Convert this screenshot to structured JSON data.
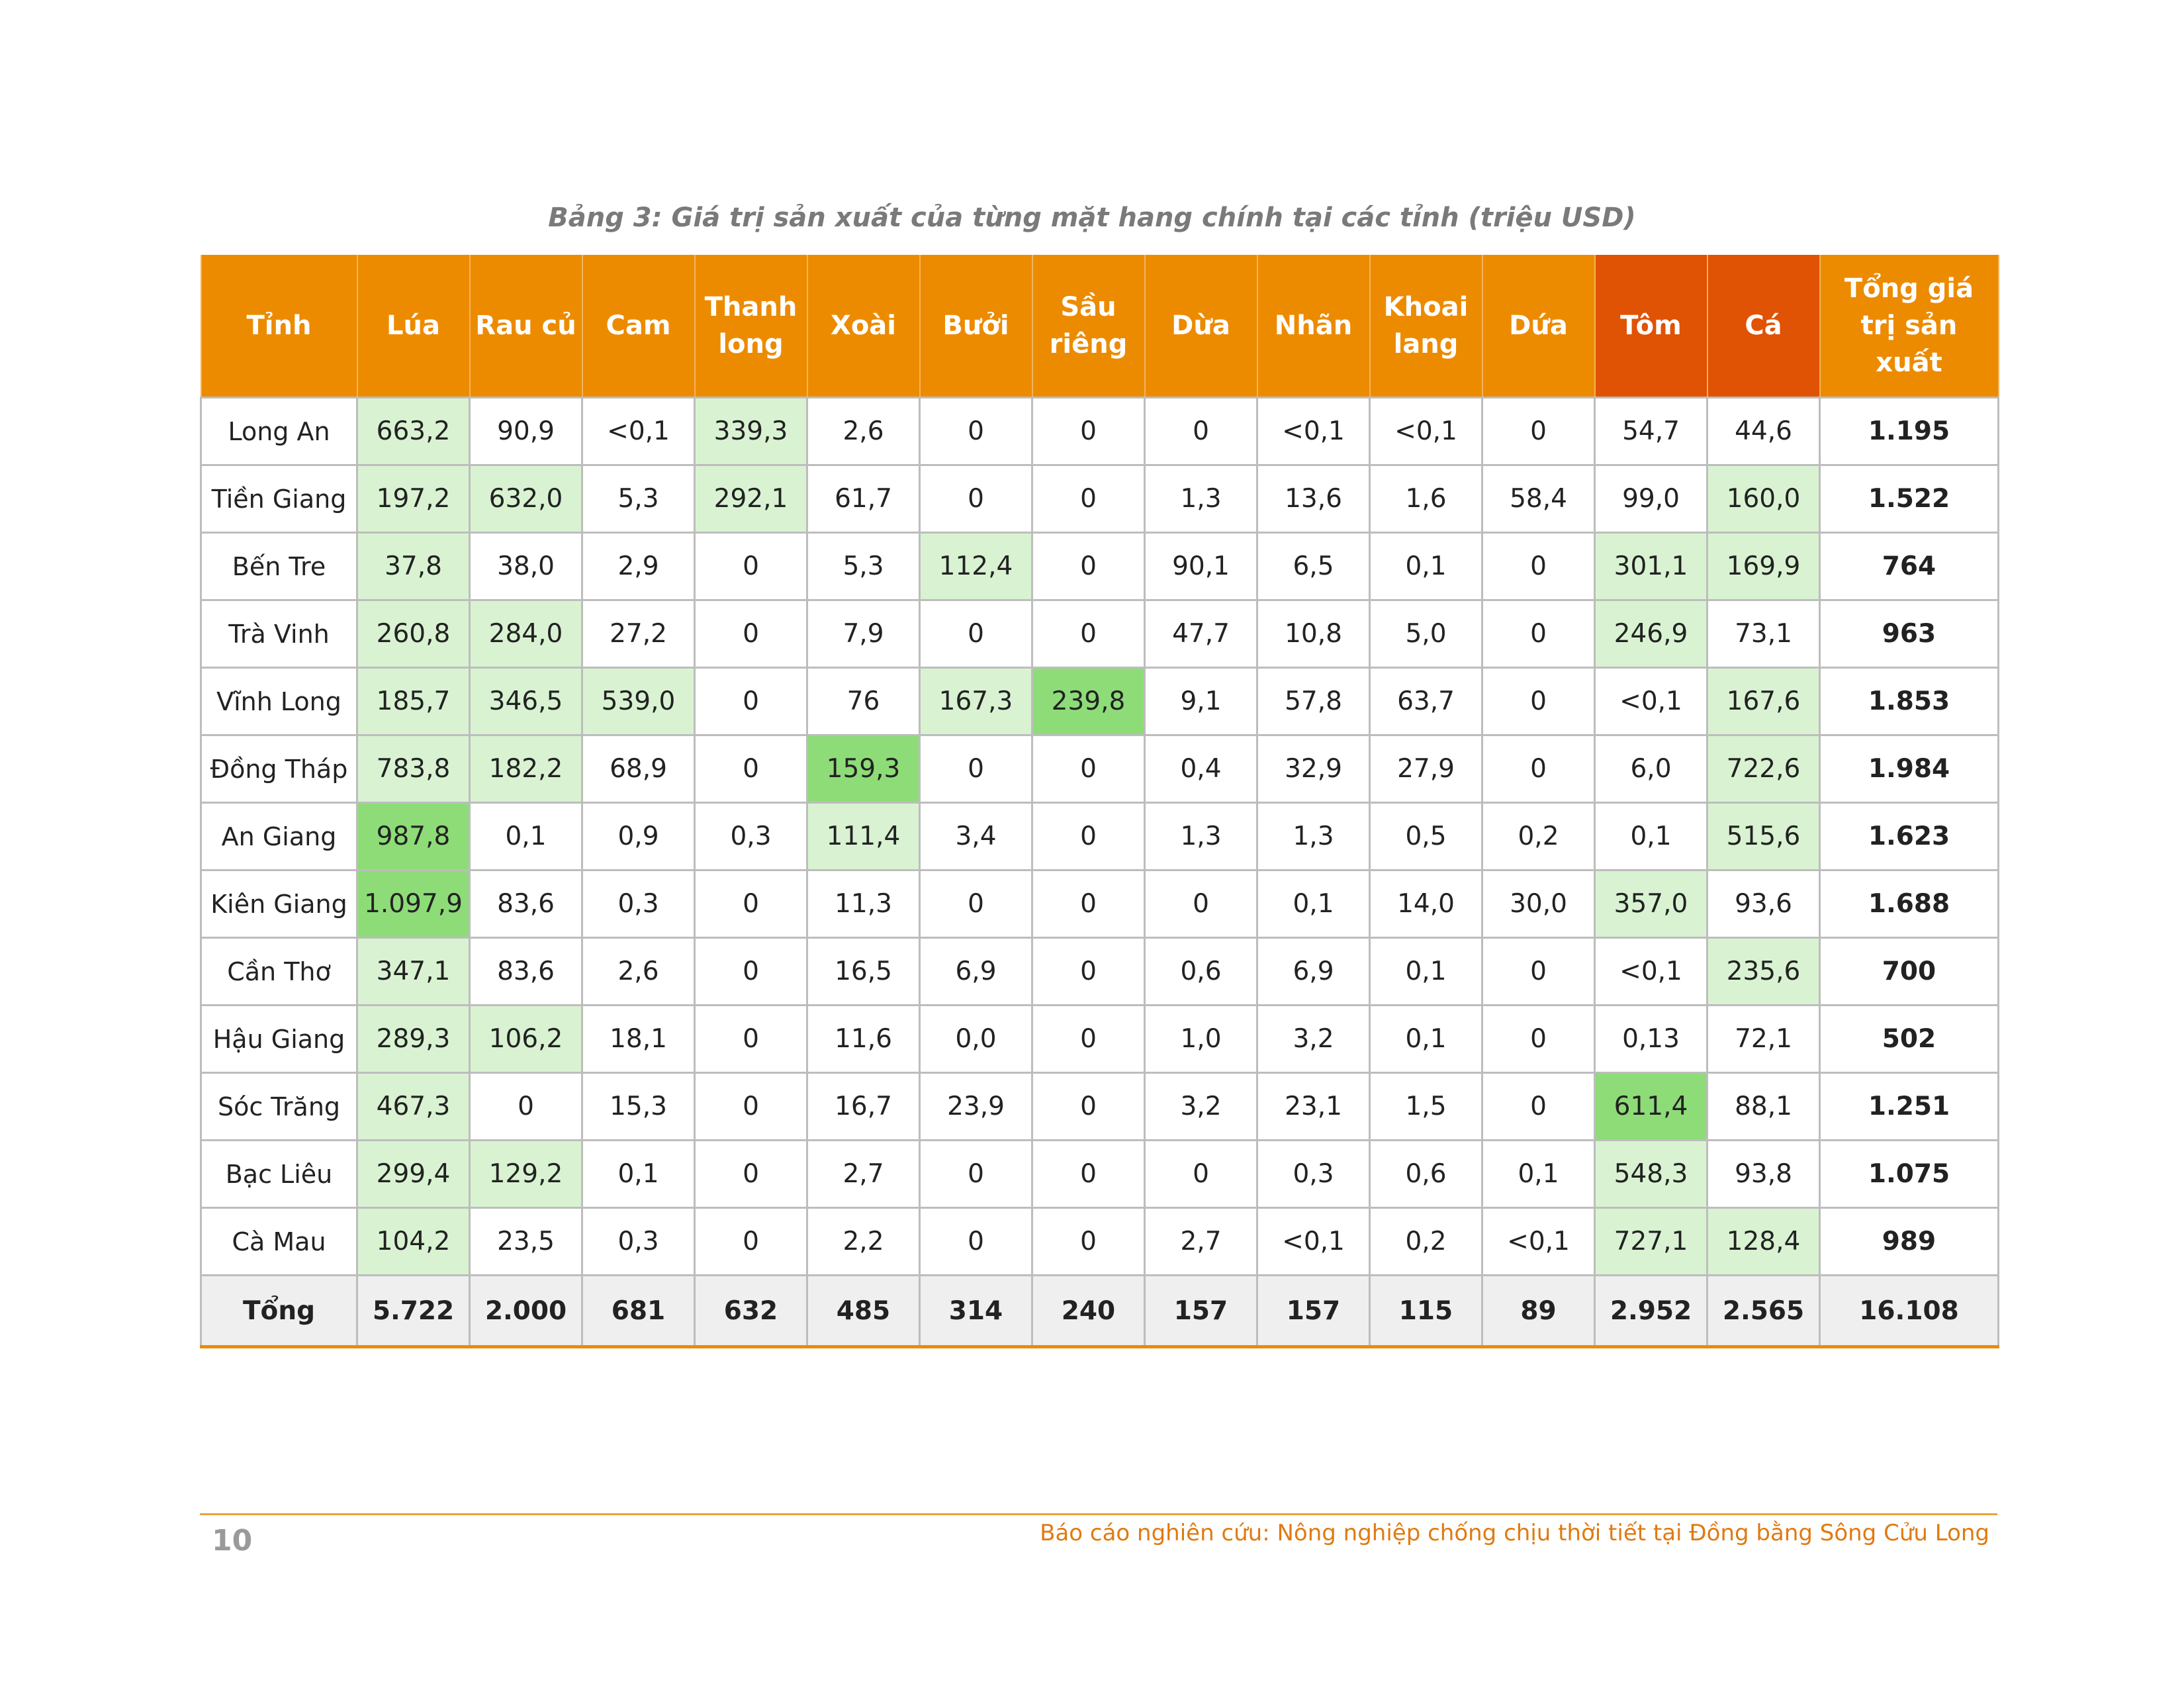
{
  "caption": "Bảng 3: Giá trị sản xuất của từng mặt hang chính tại các tỉnh (triệu USD)",
  "headers": [
    "Tỉnh",
    "Lúa",
    "Rau củ",
    "Cam",
    "Thanh long",
    "Xoài",
    "Bưởi",
    "Sầu riêng",
    "Dừa",
    "Nhãn",
    "Khoai lang",
    "Dứa",
    "Tôm",
    "Cá",
    "Tổng giá trị sản xuất"
  ],
  "rows": [
    {
      "cells": [
        "Long An",
        "663,2",
        "90,9",
        "<0,1",
        "339,3",
        "2,6",
        "0",
        "0",
        "0",
        "<0,1",
        "<0,1",
        "0",
        "54,7",
        "44,6",
        "1.195"
      ],
      "hl": [
        0,
        1,
        0,
        0,
        1,
        0,
        0,
        0,
        0,
        0,
        0,
        0,
        0,
        0,
        0
      ]
    },
    {
      "cells": [
        "Tiền Giang",
        "197,2",
        "632,0",
        "5,3",
        "292,1",
        "61,7",
        "0",
        "0",
        "1,3",
        "13,6",
        "1,6",
        "58,4",
        "99,0",
        "160,0",
        "1.522"
      ],
      "hl": [
        0,
        1,
        1,
        0,
        1,
        0,
        0,
        0,
        0,
        0,
        0,
        0,
        0,
        1,
        0
      ]
    },
    {
      "cells": [
        "Bến Tre",
        "37,8",
        "38,0",
        "2,9",
        "0",
        "5,3",
        "112,4",
        "0",
        "90,1",
        "6,5",
        "0,1",
        "0",
        "301,1",
        "169,9",
        "764"
      ],
      "hl": [
        0,
        1,
        0,
        0,
        0,
        0,
        1,
        0,
        0,
        0,
        0,
        0,
        1,
        1,
        0
      ]
    },
    {
      "cells": [
        "Trà Vinh",
        "260,8",
        "284,0",
        "27,2",
        "0",
        "7,9",
        "0",
        "0",
        "47,7",
        "10,8",
        "5,0",
        "0",
        "246,9",
        "73,1",
        "963"
      ],
      "hl": [
        0,
        1,
        1,
        0,
        0,
        0,
        0,
        0,
        0,
        0,
        0,
        0,
        1,
        0,
        0
      ]
    },
    {
      "cells": [
        "Vĩnh Long",
        "185,7",
        "346,5",
        "539,0",
        "0",
        "76",
        "167,3",
        "239,8",
        "9,1",
        "57,8",
        "63,7",
        "0",
        "<0,1",
        "167,6",
        "1.853"
      ],
      "hl": [
        0,
        1,
        1,
        1,
        0,
        0,
        1,
        2,
        0,
        0,
        0,
        0,
        0,
        1,
        0
      ]
    },
    {
      "cells": [
        "Đồng Tháp",
        "783,8",
        "182,2",
        "68,9",
        "0",
        "159,3",
        "0",
        "0",
        "0,4",
        "32,9",
        "27,9",
        "0",
        "6,0",
        "722,6",
        "1.984"
      ],
      "hl": [
        0,
        1,
        1,
        0,
        0,
        2,
        0,
        0,
        0,
        0,
        0,
        0,
        0,
        1,
        0
      ]
    },
    {
      "cells": [
        "An Giang",
        "987,8",
        "0,1",
        "0,9",
        "0,3",
        "111,4",
        "3,4",
        "0",
        "1,3",
        "1,3",
        "0,5",
        "0,2",
        "0,1",
        "515,6",
        "1.623"
      ],
      "hl": [
        0,
        2,
        0,
        0,
        0,
        1,
        0,
        0,
        0,
        0,
        0,
        0,
        0,
        1,
        0
      ]
    },
    {
      "cells": [
        "Kiên Giang",
        "1.097,9",
        "83,6",
        "0,3",
        "0",
        "11,3",
        "0",
        "0",
        "0",
        "0,1",
        "14,0",
        "30,0",
        "357,0",
        "93,6",
        "1.688"
      ],
      "hl": [
        0,
        2,
        0,
        0,
        0,
        0,
        0,
        0,
        0,
        0,
        0,
        0,
        1,
        0,
        0
      ]
    },
    {
      "cells": [
        "Cần Thơ",
        "347,1",
        "83,6",
        "2,6",
        "0",
        "16,5",
        "6,9",
        "0",
        "0,6",
        "6,9",
        "0,1",
        "0",
        "<0,1",
        "235,6",
        "700"
      ],
      "hl": [
        0,
        1,
        0,
        0,
        0,
        0,
        0,
        0,
        0,
        0,
        0,
        0,
        0,
        1,
        0
      ]
    },
    {
      "cells": [
        "Hậu Giang",
        "289,3",
        "106,2",
        "18,1",
        "0",
        "11,6",
        "0,0",
        "0",
        "1,0",
        "3,2",
        "0,1",
        "0",
        "0,13",
        "72,1",
        "502"
      ],
      "hl": [
        0,
        1,
        1,
        0,
        0,
        0,
        0,
        0,
        0,
        0,
        0,
        0,
        0,
        0,
        0
      ]
    },
    {
      "cells": [
        "Sóc Trăng",
        "467,3",
        "0",
        "15,3",
        "0",
        "16,7",
        "23,9",
        "0",
        "3,2",
        "23,1",
        "1,5",
        "0",
        "611,4",
        "88,1",
        "1.251"
      ],
      "hl": [
        0,
        1,
        0,
        0,
        0,
        0,
        0,
        0,
        0,
        0,
        0,
        0,
        2,
        0,
        0
      ]
    },
    {
      "cells": [
        "Bạc Liêu",
        "299,4",
        "129,2",
        "0,1",
        "0",
        "2,7",
        "0",
        "0",
        "0",
        "0,3",
        "0,6",
        "0,1",
        "548,3",
        "93,8",
        "1.075"
      ],
      "hl": [
        0,
        1,
        1,
        0,
        0,
        0,
        0,
        0,
        0,
        0,
        0,
        0,
        1,
        0,
        0
      ]
    },
    {
      "cells": [
        "Cà Mau",
        "104,2",
        "23,5",
        "0,3",
        "0",
        "2,2",
        "0",
        "0",
        "2,7",
        "<0,1",
        "0,2",
        "<0,1",
        "727,1",
        "128,4",
        "989"
      ],
      "hl": [
        0,
        1,
        0,
        0,
        0,
        0,
        0,
        0,
        0,
        0,
        0,
        0,
        1,
        1,
        0
      ]
    }
  ],
  "totals": [
    "Tổng",
    "5.722",
    "2.000",
    "681",
    "632",
    "485",
    "314",
    "240",
    "157",
    "157",
    "115",
    "89",
    "2.952",
    "2.565",
    "16.108"
  ],
  "footer": {
    "page_number": "10",
    "report_title": "Báo cáo nghiên cứu: Nông nghiệp chống chịu thời tiết tại Đồng bằng Sông Cửu Long"
  },
  "colors": {
    "header_orange": "#ec8b00",
    "header_dark_orange": "#e05204",
    "light_green": "#d9f3d2",
    "strong_green": "#8edc78"
  }
}
